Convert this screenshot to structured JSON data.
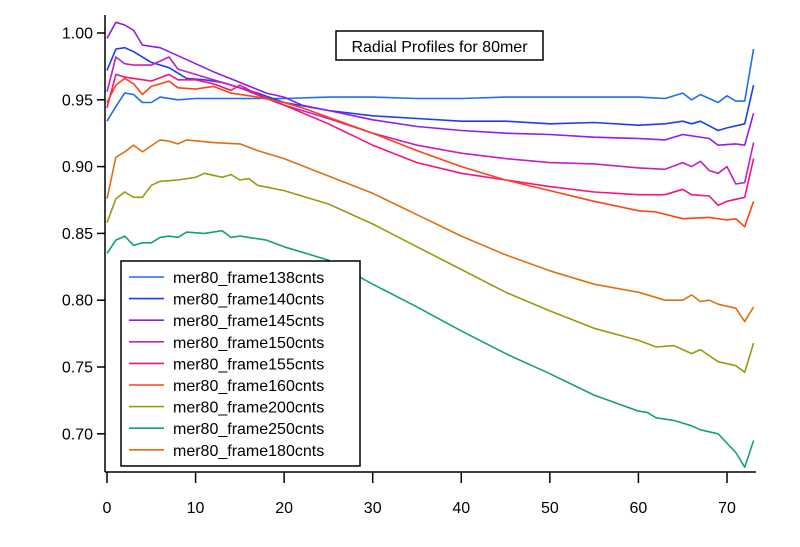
{
  "chart_data": {
    "type": "line",
    "title": "Radial Profiles for 80mer",
    "xlabel": "",
    "ylabel": "",
    "xlim": [
      -0.3,
      73.3
    ],
    "ylim": [
      0.673,
      1.013
    ],
    "xticks": [
      0,
      10,
      20,
      30,
      40,
      50,
      60,
      70
    ],
    "xtick_labels": [
      "0",
      "10",
      "20",
      "30",
      "40",
      "50",
      "60",
      "70"
    ],
    "yticks": [
      0.7,
      0.75,
      0.8,
      0.85,
      0.9,
      0.95,
      1.0
    ],
    "ytick_labels": [
      "0.70",
      "0.75",
      "0.80",
      "0.85",
      "0.90",
      "0.95",
      "1.00"
    ],
    "grid": false,
    "legend_placement": "bottom-left",
    "series": [
      {
        "name": "mer80_frame138cnts",
        "color": "#1c6ff0",
        "x": [
          0,
          1,
          2,
          3,
          4,
          5,
          6,
          8,
          10,
          12,
          15,
          20,
          25,
          30,
          35,
          40,
          45,
          50,
          55,
          60,
          63,
          65,
          66,
          67,
          69,
          70,
          71,
          72,
          73
        ],
        "y": [
          0.934,
          0.945,
          0.955,
          0.954,
          0.948,
          0.948,
          0.952,
          0.95,
          0.951,
          0.951,
          0.951,
          0.951,
          0.952,
          0.952,
          0.951,
          0.951,
          0.952,
          0.952,
          0.952,
          0.952,
          0.951,
          0.955,
          0.95,
          0.954,
          0.948,
          0.953,
          0.949,
          0.949,
          0.988
        ]
      },
      {
        "name": "mer80_frame140cnts",
        "color": "#1f3cf5",
        "x": [
          0,
          1,
          2,
          3,
          5,
          7,
          9,
          11,
          13,
          15,
          17,
          20,
          25,
          30,
          35,
          40,
          45,
          50,
          55,
          60,
          63,
          65,
          66,
          67,
          69,
          70,
          72,
          73
        ],
        "y": [
          0.972,
          0.988,
          0.989,
          0.986,
          0.978,
          0.974,
          0.966,
          0.965,
          0.963,
          0.959,
          0.955,
          0.948,
          0.942,
          0.938,
          0.936,
          0.934,
          0.934,
          0.932,
          0.933,
          0.931,
          0.932,
          0.934,
          0.932,
          0.934,
          0.927,
          0.929,
          0.932,
          0.961
        ]
      },
      {
        "name": "mer80_frame145cnts",
        "color": "#8a1ff0",
        "x": [
          0,
          1,
          2,
          3,
          4,
          5,
          6,
          8,
          10,
          12,
          15,
          18,
          20,
          22,
          25,
          30,
          35,
          40,
          45,
          50,
          55,
          60,
          63,
          65,
          68,
          69,
          71,
          72,
          73
        ],
        "y": [
          0.996,
          1.008,
          1.006,
          1.002,
          0.991,
          0.99,
          0.989,
          0.983,
          0.977,
          0.971,
          0.963,
          0.955,
          0.952,
          0.946,
          0.942,
          0.935,
          0.93,
          0.927,
          0.925,
          0.924,
          0.922,
          0.921,
          0.92,
          0.924,
          0.921,
          0.916,
          0.917,
          0.916,
          0.94
        ]
      },
      {
        "name": "mer80_frame150cnts",
        "color": "#c41fc4",
        "x": [
          0,
          1,
          2,
          3,
          5,
          7,
          8,
          10,
          12,
          15,
          18,
          20,
          25,
          30,
          35,
          40,
          45,
          50,
          55,
          60,
          63,
          65,
          66,
          67,
          68,
          69,
          70,
          71,
          72,
          73
        ],
        "y": [
          0.956,
          0.982,
          0.977,
          0.976,
          0.976,
          0.982,
          0.973,
          0.969,
          0.965,
          0.959,
          0.951,
          0.946,
          0.936,
          0.925,
          0.916,
          0.91,
          0.906,
          0.903,
          0.902,
          0.899,
          0.898,
          0.903,
          0.9,
          0.904,
          0.897,
          0.895,
          0.9,
          0.887,
          0.888,
          0.918
        ]
      },
      {
        "name": "mer80_frame155cnts",
        "color": "#f5157a",
        "x": [
          0,
          1,
          2,
          3,
          5,
          7,
          8,
          10,
          12,
          14,
          15,
          17,
          20,
          25,
          30,
          35,
          40,
          45,
          50,
          55,
          60,
          63,
          65,
          66,
          68,
          69,
          70,
          72,
          73
        ],
        "y": [
          0.944,
          0.969,
          0.967,
          0.966,
          0.964,
          0.969,
          0.965,
          0.965,
          0.962,
          0.957,
          0.961,
          0.954,
          0.946,
          0.932,
          0.916,
          0.903,
          0.895,
          0.89,
          0.885,
          0.881,
          0.879,
          0.879,
          0.883,
          0.879,
          0.878,
          0.871,
          0.874,
          0.877,
          0.906
        ]
      },
      {
        "name": "mer80_frame160cnts",
        "color": "#ff4214",
        "x": [
          0,
          1,
          2,
          3,
          4,
          5,
          7,
          8,
          10,
          12,
          14,
          17,
          20,
          22,
          25,
          30,
          35,
          40,
          45,
          50,
          55,
          60,
          62,
          65,
          68,
          70,
          71,
          72,
          73
        ],
        "y": [
          0.948,
          0.961,
          0.966,
          0.962,
          0.954,
          0.96,
          0.964,
          0.959,
          0.958,
          0.96,
          0.955,
          0.952,
          0.948,
          0.944,
          0.937,
          0.925,
          0.912,
          0.9,
          0.89,
          0.882,
          0.874,
          0.867,
          0.866,
          0.861,
          0.862,
          0.86,
          0.861,
          0.855,
          0.874
        ]
      },
      {
        "name": "mer80_frame200cnts",
        "color": "#999a0f",
        "x": [
          0,
          1,
          2,
          3,
          4,
          5,
          6,
          8,
          10,
          11,
          13,
          14,
          15,
          16,
          17,
          20,
          25,
          30,
          35,
          40,
          45,
          50,
          55,
          60,
          62,
          64,
          66,
          67,
          69,
          71,
          72,
          73
        ],
        "y": [
          0.858,
          0.876,
          0.881,
          0.877,
          0.877,
          0.886,
          0.889,
          0.89,
          0.892,
          0.895,
          0.892,
          0.894,
          0.89,
          0.891,
          0.886,
          0.882,
          0.872,
          0.857,
          0.84,
          0.823,
          0.806,
          0.792,
          0.779,
          0.77,
          0.765,
          0.766,
          0.76,
          0.763,
          0.754,
          0.751,
          0.746,
          0.768
        ]
      },
      {
        "name": "mer80_frame250cnts",
        "color": "#14a07a",
        "x": [
          0,
          1,
          2,
          3,
          4,
          5,
          6,
          7,
          8,
          9,
          11,
          13,
          14,
          15,
          18,
          20,
          25,
          30,
          35,
          40,
          45,
          50,
          55,
          60,
          61,
          62,
          64,
          66,
          67,
          69,
          71,
          72,
          73
        ],
        "y": [
          0.835,
          0.845,
          0.848,
          0.841,
          0.843,
          0.843,
          0.847,
          0.848,
          0.847,
          0.851,
          0.85,
          0.852,
          0.847,
          0.848,
          0.845,
          0.84,
          0.83,
          0.812,
          0.795,
          0.777,
          0.76,
          0.745,
          0.729,
          0.717,
          0.716,
          0.712,
          0.71,
          0.706,
          0.703,
          0.7,
          0.686,
          0.675,
          0.695
        ]
      },
      {
        "name": "mer80_frame180cnts",
        "color": "#e0700f",
        "x": [
          0,
          1,
          2,
          3,
          4,
          6,
          7,
          8,
          9,
          12,
          15,
          17,
          20,
          25,
          30,
          35,
          40,
          45,
          50,
          55,
          60,
          63,
          65,
          66,
          67,
          68,
          69,
          71,
          72,
          73
        ],
        "y": [
          0.876,
          0.907,
          0.911,
          0.916,
          0.911,
          0.92,
          0.919,
          0.917,
          0.92,
          0.918,
          0.917,
          0.912,
          0.906,
          0.893,
          0.88,
          0.864,
          0.848,
          0.834,
          0.822,
          0.812,
          0.806,
          0.8,
          0.8,
          0.804,
          0.799,
          0.8,
          0.797,
          0.794,
          0.784,
          0.795
        ]
      }
    ]
  }
}
